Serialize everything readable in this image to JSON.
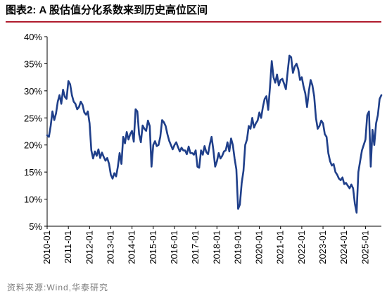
{
  "figure": {
    "title": "图表2:  A 股估值分化系数来到历史高位区间",
    "source": "资料来源:Wind,华泰研究"
  },
  "colors": {
    "title_rule": "#b01c2e",
    "series": "#1f3f8a",
    "axis": "#000000"
  },
  "chart_data": {
    "type": "line",
    "title": "",
    "xlabel": "",
    "ylabel": "",
    "ylim": [
      0.05,
      0.4
    ],
    "yticks": [
      "5%",
      "10%",
      "15%",
      "20%",
      "25%",
      "30%",
      "35%",
      "40%"
    ],
    "xticks": [
      "2010-01",
      "2011-01",
      "2012-01",
      "2013-01",
      "2014-01",
      "2015-01",
      "2016-01",
      "2017-01",
      "2018-01",
      "2019-01",
      "2020-01",
      "2021-01",
      "2022-01",
      "2023-01",
      "2024-01",
      "2025-01"
    ],
    "xlim": [
      "2010-01",
      "2025-10"
    ],
    "grid": false,
    "legend": "none",
    "series": [
      {
        "name": "",
        "x": [
          "2010-01",
          "2010-02",
          "2010-03",
          "2010-04",
          "2010-05",
          "2010-06",
          "2010-07",
          "2010-08",
          "2010-09",
          "2010-10",
          "2010-11",
          "2010-12",
          "2011-01",
          "2011-02",
          "2011-03",
          "2011-04",
          "2011-05",
          "2011-06",
          "2011-07",
          "2011-08",
          "2011-09",
          "2011-10",
          "2011-11",
          "2011-12",
          "2012-01",
          "2012-02",
          "2012-03",
          "2012-04",
          "2012-05",
          "2012-06",
          "2012-07",
          "2012-08",
          "2012-09",
          "2012-10",
          "2012-11",
          "2012-12",
          "2013-01",
          "2013-02",
          "2013-03",
          "2013-04",
          "2013-05",
          "2013-06",
          "2013-07",
          "2013-08",
          "2013-09",
          "2013-10",
          "2013-11",
          "2013-12",
          "2014-01",
          "2014-02",
          "2014-03",
          "2014-04",
          "2014-05",
          "2014-06",
          "2014-07",
          "2014-08",
          "2014-09",
          "2014-10",
          "2014-11",
          "2014-12",
          "2015-01",
          "2015-02",
          "2015-03",
          "2015-04",
          "2015-05",
          "2015-06",
          "2015-07",
          "2015-08",
          "2015-09",
          "2015-10",
          "2015-11",
          "2015-12",
          "2016-01",
          "2016-02",
          "2016-03",
          "2016-04",
          "2016-05",
          "2016-06",
          "2016-07",
          "2016-08",
          "2016-09",
          "2016-10",
          "2016-11",
          "2016-12",
          "2017-01",
          "2017-02",
          "2017-03",
          "2017-04",
          "2017-05",
          "2017-06",
          "2017-07",
          "2017-08",
          "2017-09",
          "2017-10",
          "2017-11",
          "2017-12",
          "2018-01",
          "2018-02",
          "2018-03",
          "2018-04",
          "2018-05",
          "2018-06",
          "2018-07",
          "2018-08",
          "2018-09",
          "2018-10",
          "2018-11",
          "2018-12",
          "2019-01",
          "2019-02",
          "2019-03",
          "2019-04",
          "2019-05",
          "2019-06",
          "2019-07",
          "2019-08",
          "2019-09",
          "2019-10",
          "2019-11",
          "2019-12",
          "2020-01",
          "2020-02",
          "2020-03",
          "2020-04",
          "2020-05",
          "2020-06",
          "2020-07",
          "2020-08",
          "2020-09",
          "2020-10",
          "2020-11",
          "2020-12",
          "2021-01",
          "2021-02",
          "2021-03",
          "2021-04",
          "2021-05",
          "2021-06",
          "2021-07",
          "2021-08",
          "2021-09",
          "2021-10",
          "2021-11",
          "2021-12",
          "2022-01",
          "2022-02",
          "2022-03",
          "2022-04",
          "2022-05",
          "2022-06",
          "2022-07",
          "2022-08",
          "2022-09",
          "2022-10",
          "2022-11",
          "2022-12",
          "2023-01",
          "2023-02",
          "2023-03",
          "2023-04",
          "2023-05",
          "2023-06",
          "2023-07",
          "2023-08",
          "2023-09",
          "2023-10",
          "2023-11",
          "2023-12",
          "2024-01",
          "2024-02",
          "2024-03",
          "2024-04",
          "2024-05",
          "2024-06",
          "2024-07",
          "2024-08",
          "2024-09",
          "2024-10",
          "2024-11",
          "2024-12",
          "2025-01",
          "2025-02",
          "2025-03",
          "2025-04",
          "2025-05",
          "2025-06",
          "2025-07",
          "2025-08",
          "2025-09",
          "2025-10"
        ],
        "values": [
          0.218,
          0.215,
          0.235,
          0.262,
          0.246,
          0.258,
          0.28,
          0.292,
          0.276,
          0.302,
          0.289,
          0.285,
          0.318,
          0.312,
          0.292,
          0.28,
          0.276,
          0.266,
          0.27,
          0.28,
          0.274,
          0.26,
          0.256,
          0.262,
          0.24,
          0.19,
          0.175,
          0.188,
          0.18,
          0.192,
          0.176,
          0.186,
          0.178,
          0.171,
          0.176,
          0.165,
          0.145,
          0.138,
          0.148,
          0.142,
          0.16,
          0.185,
          0.165,
          0.215,
          0.203,
          0.224,
          0.21,
          0.22,
          0.226,
          0.206,
          0.266,
          0.262,
          0.22,
          0.205,
          0.236,
          0.23,
          0.226,
          0.245,
          0.235,
          0.16,
          0.2,
          0.207,
          0.198,
          0.2,
          0.215,
          0.246,
          0.242,
          0.235,
          0.22,
          0.208,
          0.2,
          0.192,
          0.2,
          0.205,
          0.196,
          0.188,
          0.195,
          0.19,
          0.19,
          0.183,
          0.197,
          0.185,
          0.185,
          0.182,
          0.19,
          0.16,
          0.158,
          0.19,
          0.182,
          0.198,
          0.187,
          0.183,
          0.201,
          0.215,
          0.191,
          0.16,
          0.17,
          0.185,
          0.175,
          0.18,
          0.188,
          0.19,
          0.205,
          0.188,
          0.212,
          0.2,
          0.175,
          0.155,
          0.082,
          0.09,
          0.13,
          0.152,
          0.2,
          0.21,
          0.235,
          0.23,
          0.25,
          0.232,
          0.24,
          0.245,
          0.26,
          0.25,
          0.27,
          0.285,
          0.29,
          0.265,
          0.307,
          0.355,
          0.325,
          0.315,
          0.33,
          0.31,
          0.32,
          0.322,
          0.313,
          0.303,
          0.335,
          0.365,
          0.362,
          0.333,
          0.345,
          0.35,
          0.34,
          0.32,
          0.325,
          0.308,
          0.295,
          0.27,
          0.3,
          0.32,
          0.31,
          0.29,
          0.25,
          0.23,
          0.235,
          0.245,
          0.24,
          0.22,
          0.215,
          0.185,
          0.17,
          0.162,
          0.165,
          0.15,
          0.145,
          0.138,
          0.135,
          0.14,
          0.128,
          0.13,
          0.125,
          0.12,
          0.127,
          0.12,
          0.092,
          0.075,
          0.15,
          0.17,
          0.19,
          0.2,
          0.21,
          0.255,
          0.262,
          0.16,
          0.228,
          0.2,
          0.24,
          0.255,
          0.285,
          0.292
        ]
      }
    ]
  }
}
